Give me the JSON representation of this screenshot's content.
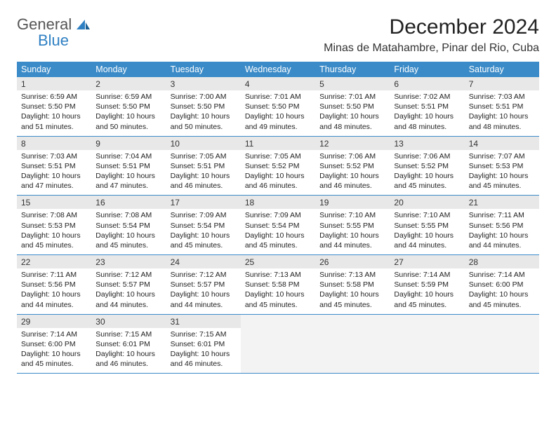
{
  "brand": {
    "general": "General",
    "blue": "Blue"
  },
  "title": "December 2024",
  "location": "Minas de Matahambre, Pinar del Rio, Cuba",
  "colors": {
    "header_bg": "#3b8bc8",
    "header_text": "#ffffff",
    "daynum_bg": "#e8e8e8",
    "rule": "#3b8bc8",
    "logo_blue": "#2f80c3",
    "body_text": "#333333",
    "background": "#ffffff"
  },
  "layout": {
    "columns": 7,
    "rows": 5,
    "cell_width_pct": 14.28
  },
  "typography": {
    "title_fontsize": 30,
    "location_fontsize": 16,
    "dayheader_fontsize": 12.5,
    "daynum_fontsize": 12,
    "cell_fontsize": 10.5
  },
  "day_headers": [
    "Sunday",
    "Monday",
    "Tuesday",
    "Wednesday",
    "Thursday",
    "Friday",
    "Saturday"
  ],
  "weeks": [
    [
      {
        "n": "1",
        "sr": "6:59 AM",
        "ss": "5:50 PM",
        "dl": "10 hours and 51 minutes."
      },
      {
        "n": "2",
        "sr": "6:59 AM",
        "ss": "5:50 PM",
        "dl": "10 hours and 50 minutes."
      },
      {
        "n": "3",
        "sr": "7:00 AM",
        "ss": "5:50 PM",
        "dl": "10 hours and 50 minutes."
      },
      {
        "n": "4",
        "sr": "7:01 AM",
        "ss": "5:50 PM",
        "dl": "10 hours and 49 minutes."
      },
      {
        "n": "5",
        "sr": "7:01 AM",
        "ss": "5:50 PM",
        "dl": "10 hours and 48 minutes."
      },
      {
        "n": "6",
        "sr": "7:02 AM",
        "ss": "5:51 PM",
        "dl": "10 hours and 48 minutes."
      },
      {
        "n": "7",
        "sr": "7:03 AM",
        "ss": "5:51 PM",
        "dl": "10 hours and 48 minutes."
      }
    ],
    [
      {
        "n": "8",
        "sr": "7:03 AM",
        "ss": "5:51 PM",
        "dl": "10 hours and 47 minutes."
      },
      {
        "n": "9",
        "sr": "7:04 AM",
        "ss": "5:51 PM",
        "dl": "10 hours and 47 minutes."
      },
      {
        "n": "10",
        "sr": "7:05 AM",
        "ss": "5:51 PM",
        "dl": "10 hours and 46 minutes."
      },
      {
        "n": "11",
        "sr": "7:05 AM",
        "ss": "5:52 PM",
        "dl": "10 hours and 46 minutes."
      },
      {
        "n": "12",
        "sr": "7:06 AM",
        "ss": "5:52 PM",
        "dl": "10 hours and 46 minutes."
      },
      {
        "n": "13",
        "sr": "7:06 AM",
        "ss": "5:52 PM",
        "dl": "10 hours and 45 minutes."
      },
      {
        "n": "14",
        "sr": "7:07 AM",
        "ss": "5:53 PM",
        "dl": "10 hours and 45 minutes."
      }
    ],
    [
      {
        "n": "15",
        "sr": "7:08 AM",
        "ss": "5:53 PM",
        "dl": "10 hours and 45 minutes."
      },
      {
        "n": "16",
        "sr": "7:08 AM",
        "ss": "5:54 PM",
        "dl": "10 hours and 45 minutes."
      },
      {
        "n": "17",
        "sr": "7:09 AM",
        "ss": "5:54 PM",
        "dl": "10 hours and 45 minutes."
      },
      {
        "n": "18",
        "sr": "7:09 AM",
        "ss": "5:54 PM",
        "dl": "10 hours and 45 minutes."
      },
      {
        "n": "19",
        "sr": "7:10 AM",
        "ss": "5:55 PM",
        "dl": "10 hours and 44 minutes."
      },
      {
        "n": "20",
        "sr": "7:10 AM",
        "ss": "5:55 PM",
        "dl": "10 hours and 44 minutes."
      },
      {
        "n": "21",
        "sr": "7:11 AM",
        "ss": "5:56 PM",
        "dl": "10 hours and 44 minutes."
      }
    ],
    [
      {
        "n": "22",
        "sr": "7:11 AM",
        "ss": "5:56 PM",
        "dl": "10 hours and 44 minutes."
      },
      {
        "n": "23",
        "sr": "7:12 AM",
        "ss": "5:57 PM",
        "dl": "10 hours and 44 minutes."
      },
      {
        "n": "24",
        "sr": "7:12 AM",
        "ss": "5:57 PM",
        "dl": "10 hours and 44 minutes."
      },
      {
        "n": "25",
        "sr": "7:13 AM",
        "ss": "5:58 PM",
        "dl": "10 hours and 45 minutes."
      },
      {
        "n": "26",
        "sr": "7:13 AM",
        "ss": "5:58 PM",
        "dl": "10 hours and 45 minutes."
      },
      {
        "n": "27",
        "sr": "7:14 AM",
        "ss": "5:59 PM",
        "dl": "10 hours and 45 minutes."
      },
      {
        "n": "28",
        "sr": "7:14 AM",
        "ss": "6:00 PM",
        "dl": "10 hours and 45 minutes."
      }
    ],
    [
      {
        "n": "29",
        "sr": "7:14 AM",
        "ss": "6:00 PM",
        "dl": "10 hours and 45 minutes."
      },
      {
        "n": "30",
        "sr": "7:15 AM",
        "ss": "6:01 PM",
        "dl": "10 hours and 46 minutes."
      },
      {
        "n": "31",
        "sr": "7:15 AM",
        "ss": "6:01 PM",
        "dl": "10 hours and 46 minutes."
      },
      null,
      null,
      null,
      null
    ]
  ],
  "labels": {
    "sunrise": "Sunrise: ",
    "sunset": "Sunset: ",
    "daylight": "Daylight: "
  }
}
